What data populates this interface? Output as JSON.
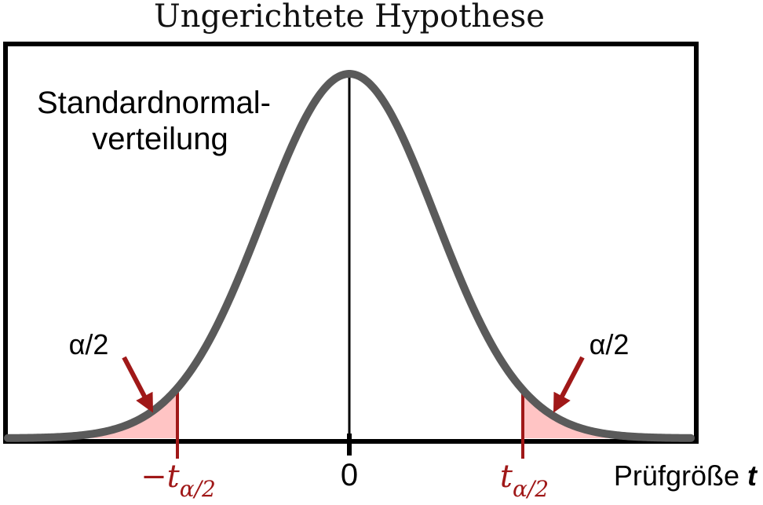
{
  "title": "Ungerichtete Hypothese",
  "curve_label": {
    "line1": "Standardnormal-",
    "line2": "verteilung"
  },
  "tails": {
    "left_label": "α/2",
    "right_label": "α/2"
  },
  "critical_values": {
    "left": {
      "sign": "−",
      "symbol": "t",
      "subscript": "α/2"
    },
    "right": {
      "symbol": "t",
      "subscript": "α/2"
    }
  },
  "axis": {
    "center_label": "0",
    "label_prefix": "Prüfgröße ",
    "label_var": "t"
  },
  "colors": {
    "curve": "#5a5a5a",
    "tail_fill": "#ffc4c4",
    "critical": "#a01818",
    "frame": "#000000"
  }
}
